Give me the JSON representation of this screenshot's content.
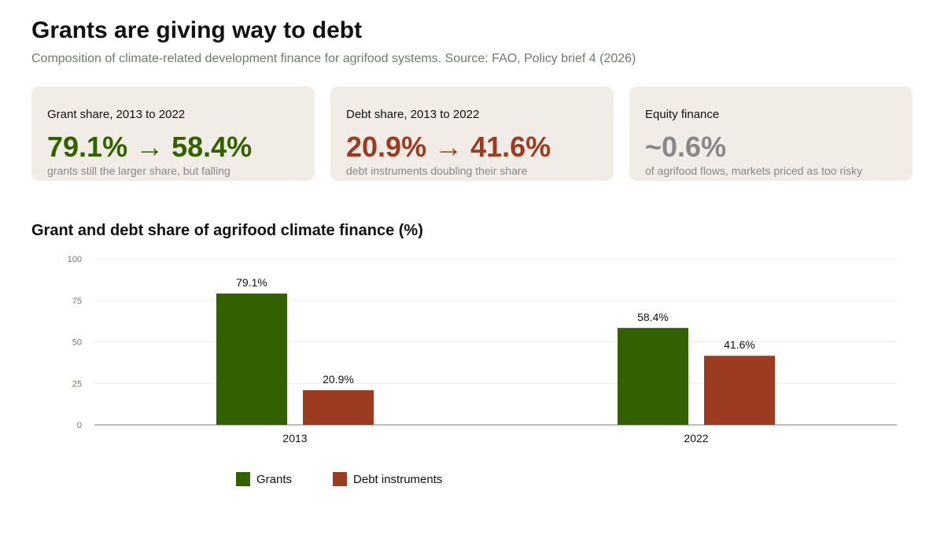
{
  "header": {
    "title": "Grants are giving way to debt",
    "subtitle": "Composition of climate-related development finance for agrifood systems. Source: FAO, Policy brief 4 (2026)"
  },
  "kpis": [
    {
      "label": "Grant share, 2013 to 2022",
      "value": "79.1% → 58.4%",
      "note": "grants still the larger share, but falling",
      "color": "#336100"
    },
    {
      "label": "Debt share, 2013 to 2022",
      "value": "20.9% → 41.6%",
      "note": "debt instruments doubling their share",
      "color": "#9b3b1f"
    },
    {
      "label": "Equity finance",
      "value": "~0.6%",
      "note": "of agrifood flows, markets priced as too risky",
      "color": "#888888"
    }
  ],
  "chart_data": {
    "type": "bar",
    "title": "Grant and debt share of agrifood climate finance (%)",
    "categories": [
      "2013",
      "2022"
    ],
    "series": [
      {
        "name": "Grants",
        "values": [
          79.1,
          58.4
        ],
        "labels": [
          "79.1%",
          "58.4%"
        ],
        "color": "#336100"
      },
      {
        "name": "Debt instruments",
        "values": [
          20.9,
          41.6
        ],
        "labels": [
          "20.9%",
          "41.6%"
        ],
        "color": "#9b3b1f"
      }
    ],
    "ylim": [
      0,
      100
    ],
    "yticks": [
      0,
      25,
      50,
      75,
      100
    ],
    "grid": true,
    "legend": "bottom"
  }
}
